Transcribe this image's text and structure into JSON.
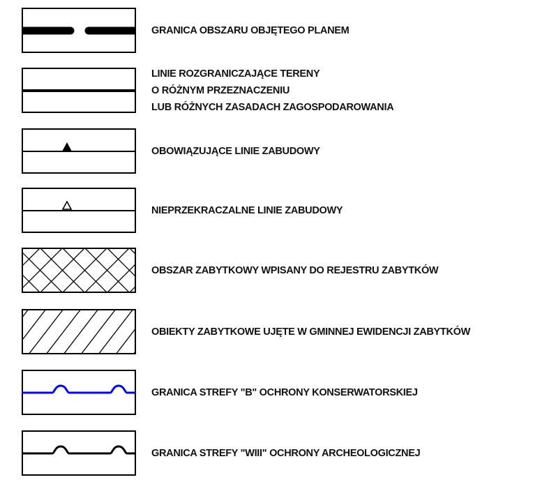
{
  "legend": {
    "items": [
      {
        "id": "plan-boundary",
        "symbol": "thick-dashed-line",
        "lines": [
          "GRANICA OBSZARU OBJĘTEGO PLANEM"
        ]
      },
      {
        "id": "demarcation-lines",
        "symbol": "thin-solid-line",
        "lines": [
          "LINIE ROZGRANICZAJĄCE TERENY",
          "O RÓŻNYM PRZEZNACZENIU",
          "LUB RÓŻNYCH ZASADACH ZAGOSPODAROWANIA"
        ]
      },
      {
        "id": "mandatory-building-lines",
        "symbol": "line-with-filled-triangle",
        "lines": [
          "OBOWIĄZUJĄCE LINIE ZABUDOWY"
        ]
      },
      {
        "id": "non-exceedable-building-lines",
        "symbol": "line-with-hollow-triangle",
        "lines": [
          "NIEPRZEKRACZALNE LINIE ZABUDOWY"
        ]
      },
      {
        "id": "registered-heritage-area",
        "symbol": "cross-hatch",
        "lines": [
          "OBSZAR ZABYTKOWY WPISANY DO REJESTRU ZABYTKÓW"
        ]
      },
      {
        "id": "municipal-heritage-objects",
        "symbol": "diagonal-hatch",
        "lines": [
          "OBIEKTY ZABYTKOWE UJĘTE W GMINNEJ EWIDENCJI ZABYTKÓW"
        ]
      },
      {
        "id": "zone-b-boundary",
        "symbol": "line-with-arcs",
        "color": "#0000ff",
        "lines": [
          "GRANICA STREFY \"B\" OCHRONY KONSERWATORSKIEJ"
        ]
      },
      {
        "id": "zone-wiii-boundary",
        "symbol": "line-with-arcs",
        "color": "#000000",
        "lines": [
          "GRANICA STREFY \"WIII\" OCHRONY ARCHEOLOGICZNEJ"
        ]
      }
    ]
  }
}
